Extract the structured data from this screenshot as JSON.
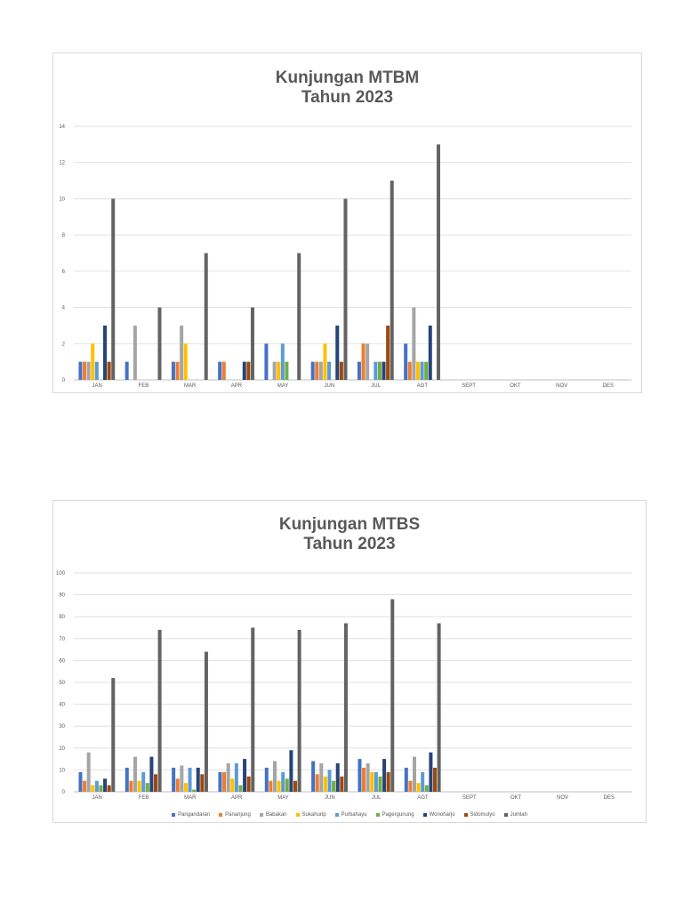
{
  "colors": {
    "Pangandaran": "#4472c4",
    "Pananjung": "#ed7d31",
    "Babakan": "#a5a5a5",
    "Sukahurip": "#ffc000",
    "Purbahayu": "#5b9bd5",
    "Pagergunung": "#70ad47",
    "Wonoharjo": "#264478",
    "Sidomulyo": "#9e480e",
    "Jumlah": "#636363"
  },
  "chart_data": [
    {
      "type": "bar",
      "title": [
        "Kunjungan MTBM",
        "Tahun 2023"
      ],
      "xlabel": "",
      "ylabel": "",
      "ylim": [
        0,
        14
      ],
      "yticks": [
        0,
        2,
        4,
        6,
        8,
        10,
        12,
        14
      ],
      "grid": true,
      "legend": "none",
      "categories": [
        "JAN",
        "FEB",
        "MAR",
        "APR",
        "MAY",
        "JUN",
        "JUL",
        "AGT",
        "SEPT",
        "OKT",
        "NOV",
        "DES"
      ],
      "series": [
        {
          "name": "Pangandaran",
          "values": [
            1,
            1,
            1,
            1,
            2,
            1,
            1,
            2,
            null,
            null,
            null,
            null
          ]
        },
        {
          "name": "Pananjung",
          "values": [
            1,
            0,
            1,
            1,
            0,
            1,
            2,
            1,
            null,
            null,
            null,
            null
          ]
        },
        {
          "name": "Babakan",
          "values": [
            1,
            3,
            3,
            0,
            1,
            1,
            2,
            4,
            null,
            null,
            null,
            null
          ]
        },
        {
          "name": "Sukahurip",
          "values": [
            2,
            0,
            2,
            0,
            1,
            2,
            0,
            1,
            null,
            null,
            null,
            null
          ]
        },
        {
          "name": "Purbahayu",
          "values": [
            1,
            0,
            0,
            0,
            2,
            1,
            1,
            1,
            null,
            null,
            null,
            null
          ]
        },
        {
          "name": "Pagergunung",
          "values": [
            0,
            0,
            0,
            0,
            1,
            0,
            1,
            1,
            null,
            null,
            null,
            null
          ]
        },
        {
          "name": "Wonoharjo",
          "values": [
            3,
            0,
            0,
            1,
            0,
            3,
            1,
            3,
            null,
            null,
            null,
            null
          ]
        },
        {
          "name": "Sidomulyo",
          "values": [
            1,
            0,
            0,
            1,
            0,
            1,
            3,
            0,
            null,
            null,
            null,
            null
          ]
        },
        {
          "name": "Jumlah",
          "values": [
            10,
            4,
            7,
            4,
            7,
            10,
            11,
            13,
            null,
            null,
            null,
            null
          ]
        }
      ]
    },
    {
      "type": "bar",
      "title": [
        "Kunjungan MTBS",
        "Tahun 2023"
      ],
      "xlabel": "",
      "ylabel": "",
      "ylim": [
        0,
        100
      ],
      "yticks": [
        0,
        10,
        20,
        30,
        40,
        50,
        60,
        70,
        80,
        90,
        100
      ],
      "grid": true,
      "legend": "bottom",
      "categories": [
        "JAN",
        "FEB",
        "MAR",
        "APR",
        "MAY",
        "JUN",
        "JUL",
        "AGT",
        "SEPT",
        "OKT",
        "NOV",
        "DES"
      ],
      "series": [
        {
          "name": "Pangandaran",
          "values": [
            9,
            11,
            11,
            9,
            11,
            14,
            15,
            11,
            null,
            null,
            null,
            null
          ]
        },
        {
          "name": "Pananjung",
          "values": [
            5,
            5,
            6,
            9,
            5,
            8,
            11,
            5,
            null,
            null,
            null,
            null
          ]
        },
        {
          "name": "Babakan",
          "values": [
            18,
            16,
            12,
            13,
            14,
            13,
            13,
            16,
            null,
            null,
            null,
            null
          ]
        },
        {
          "name": "Sukahurip",
          "values": [
            3,
            5,
            4,
            6,
            5,
            7,
            9,
            4,
            null,
            null,
            null,
            null
          ]
        },
        {
          "name": "Purbahayu",
          "values": [
            5,
            9,
            11,
            13,
            9,
            10,
            9,
            9,
            null,
            null,
            null,
            null
          ]
        },
        {
          "name": "Pagergunung",
          "values": [
            3,
            4,
            1,
            3,
            6,
            5,
            7,
            3,
            null,
            null,
            null,
            null
          ]
        },
        {
          "name": "Wonoharjo",
          "values": [
            6,
            16,
            11,
            15,
            19,
            13,
            15,
            18,
            null,
            null,
            null,
            null
          ]
        },
        {
          "name": "Sidomulyo",
          "values": [
            3,
            8,
            8,
            7,
            5,
            7,
            9,
            11,
            null,
            null,
            null,
            null
          ]
        },
        {
          "name": "Jumlah",
          "values": [
            52,
            74,
            64,
            75,
            74,
            77,
            88,
            77,
            null,
            null,
            null,
            null
          ]
        }
      ]
    }
  ]
}
